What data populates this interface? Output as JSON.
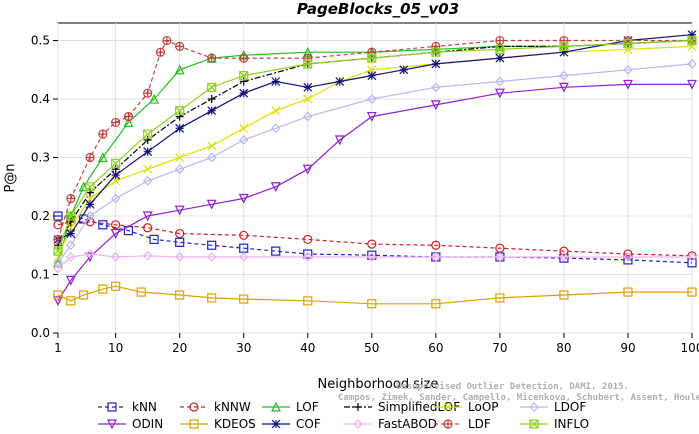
{
  "chart_data": {
    "type": "line",
    "title": "PageBlocks_05_v03",
    "xlabel": "Neighborhood size",
    "ylabel": "P@n",
    "xlim": [
      1,
      100
    ],
    "ylim": [
      0.0,
      0.53
    ],
    "x_ticks": [
      1,
      10,
      20,
      30,
      40,
      50,
      60,
      70,
      80,
      90,
      100
    ],
    "y_ticks": [
      0.0,
      0.1,
      0.2,
      0.3,
      0.4,
      0.5
    ],
    "grid": true,
    "legend_position": "bottom",
    "watermark": [
      "Unsupervised Outlier Detection, DAMI, 2015.",
      "Campos, Zimek, Sander, Campello, Micenkova, Schubert, Assent, Houle"
    ],
    "series": [
      {
        "name": "kNN",
        "color": "#2020d0",
        "marker": "square",
        "dash": "4,3",
        "points": [
          [
            1,
            0.2
          ],
          [
            3,
            0.2
          ],
          [
            5,
            0.195
          ],
          [
            8,
            0.185
          ],
          [
            12,
            0.175
          ],
          [
            16,
            0.16
          ],
          [
            20,
            0.155
          ],
          [
            25,
            0.15
          ],
          [
            30,
            0.145
          ],
          [
            35,
            0.14
          ],
          [
            40,
            0.135
          ],
          [
            50,
            0.133
          ],
          [
            60,
            0.13
          ],
          [
            70,
            0.13
          ],
          [
            80,
            0.128
          ],
          [
            90,
            0.125
          ],
          [
            100,
            0.12
          ]
        ]
      },
      {
        "name": "kNNW",
        "color": "#d02020",
        "marker": "circle",
        "dash": "4,3",
        "points": [
          [
            1,
            0.185
          ],
          [
            3,
            0.19
          ],
          [
            6,
            0.19
          ],
          [
            10,
            0.185
          ],
          [
            15,
            0.18
          ],
          [
            20,
            0.17
          ],
          [
            30,
            0.167
          ],
          [
            40,
            0.16
          ],
          [
            50,
            0.152
          ],
          [
            60,
            0.15
          ],
          [
            70,
            0.145
          ],
          [
            80,
            0.14
          ],
          [
            90,
            0.135
          ],
          [
            100,
            0.132
          ]
        ]
      },
      {
        "name": "LOF",
        "color": "#20c020",
        "marker": "triangle",
        "dash": "",
        "points": [
          [
            1,
            0.12
          ],
          [
            3,
            0.2
          ],
          [
            5,
            0.25
          ],
          [
            8,
            0.3
          ],
          [
            12,
            0.36
          ],
          [
            16,
            0.4
          ],
          [
            20,
            0.45
          ],
          [
            25,
            0.47
          ],
          [
            30,
            0.475
          ],
          [
            40,
            0.48
          ],
          [
            50,
            0.48
          ],
          [
            60,
            0.485
          ],
          [
            70,
            0.49
          ],
          [
            80,
            0.49
          ],
          [
            90,
            0.495
          ],
          [
            100,
            0.5
          ]
        ]
      },
      {
        "name": "SimplifiedLOF",
        "color": "#000000",
        "marker": "plus",
        "dash": "6,2,2,2",
        "points": [
          [
            1,
            0.15
          ],
          [
            3,
            0.19
          ],
          [
            6,
            0.24
          ],
          [
            10,
            0.28
          ],
          [
            15,
            0.33
          ],
          [
            20,
            0.37
          ],
          [
            25,
            0.4
          ],
          [
            30,
            0.43
          ],
          [
            40,
            0.46
          ],
          [
            50,
            0.47
          ],
          [
            60,
            0.48
          ],
          [
            70,
            0.49
          ],
          [
            80,
            0.49
          ],
          [
            90,
            0.495
          ],
          [
            100,
            0.5
          ]
        ]
      },
      {
        "name": "LoOP",
        "color": "#e0e000",
        "marker": "x",
        "dash": "",
        "points": [
          [
            1,
            0.13
          ],
          [
            3,
            0.18
          ],
          [
            6,
            0.23
          ],
          [
            10,
            0.26
          ],
          [
            15,
            0.28
          ],
          [
            20,
            0.3
          ],
          [
            25,
            0.32
          ],
          [
            30,
            0.35
          ],
          [
            35,
            0.38
          ],
          [
            40,
            0.4
          ],
          [
            45,
            0.43
          ],
          [
            50,
            0.45
          ],
          [
            60,
            0.46
          ],
          [
            70,
            0.47
          ],
          [
            80,
            0.48
          ],
          [
            90,
            0.485
          ],
          [
            100,
            0.49
          ]
        ]
      },
      {
        "name": "LDOF",
        "color": "#b8b8f0",
        "marker": "diamond",
        "dash": "",
        "points": [
          [
            1,
            0.12
          ],
          [
            3,
            0.15
          ],
          [
            6,
            0.2
          ],
          [
            10,
            0.23
          ],
          [
            15,
            0.26
          ],
          [
            20,
            0.28
          ],
          [
            25,
            0.3
          ],
          [
            30,
            0.33
          ],
          [
            35,
            0.35
          ],
          [
            40,
            0.37
          ],
          [
            50,
            0.4
          ],
          [
            60,
            0.42
          ],
          [
            70,
            0.43
          ],
          [
            80,
            0.44
          ],
          [
            90,
            0.45
          ],
          [
            100,
            0.46
          ]
        ]
      },
      {
        "name": "ODIN",
        "color": "#9020d0",
        "marker": "triangle-down",
        "dash": "",
        "points": [
          [
            1,
            0.055
          ],
          [
            3,
            0.09
          ],
          [
            6,
            0.13
          ],
          [
            10,
            0.17
          ],
          [
            15,
            0.2
          ],
          [
            20,
            0.21
          ],
          [
            25,
            0.22
          ],
          [
            30,
            0.23
          ],
          [
            35,
            0.25
          ],
          [
            40,
            0.28
          ],
          [
            45,
            0.33
          ],
          [
            50,
            0.37
          ],
          [
            60,
            0.39
          ],
          [
            70,
            0.41
          ],
          [
            80,
            0.42
          ],
          [
            90,
            0.425
          ],
          [
            100,
            0.425
          ]
        ]
      },
      {
        "name": "KDEOS",
        "color": "#e0a000",
        "marker": "square",
        "dash": "",
        "points": [
          [
            1,
            0.065
          ],
          [
            3,
            0.055
          ],
          [
            5,
            0.065
          ],
          [
            8,
            0.075
          ],
          [
            10,
            0.08
          ],
          [
            14,
            0.07
          ],
          [
            20,
            0.065
          ],
          [
            25,
            0.06
          ],
          [
            30,
            0.058
          ],
          [
            40,
            0.055
          ],
          [
            50,
            0.05
          ],
          [
            60,
            0.05
          ],
          [
            70,
            0.06
          ],
          [
            80,
            0.065
          ],
          [
            90,
            0.07
          ],
          [
            100,
            0.07
          ]
        ]
      },
      {
        "name": "COF",
        "color": "#101080",
        "marker": "star",
        "dash": "",
        "points": [
          [
            1,
            0.16
          ],
          [
            3,
            0.17
          ],
          [
            6,
            0.22
          ],
          [
            10,
            0.27
          ],
          [
            15,
            0.31
          ],
          [
            20,
            0.35
          ],
          [
            25,
            0.38
          ],
          [
            30,
            0.41
          ],
          [
            35,
            0.43
          ],
          [
            40,
            0.42
          ],
          [
            45,
            0.43
          ],
          [
            50,
            0.44
          ],
          [
            55,
            0.45
          ],
          [
            60,
            0.46
          ],
          [
            70,
            0.47
          ],
          [
            80,
            0.48
          ],
          [
            90,
            0.5
          ],
          [
            100,
            0.51
          ]
        ]
      },
      {
        "name": "FastABOD",
        "color": "#f0b0f0",
        "marker": "diamond",
        "dash": "",
        "points": [
          [
            1,
            0.11
          ],
          [
            3,
            0.13
          ],
          [
            6,
            0.135
          ],
          [
            10,
            0.13
          ],
          [
            15,
            0.132
          ],
          [
            20,
            0.13
          ],
          [
            25,
            0.13
          ],
          [
            30,
            0.13
          ],
          [
            40,
            0.13
          ],
          [
            50,
            0.13
          ],
          [
            60,
            0.13
          ],
          [
            70,
            0.13
          ],
          [
            80,
            0.13
          ],
          [
            90,
            0.13
          ],
          [
            100,
            0.13
          ]
        ]
      },
      {
        "name": "LDF",
        "color": "#c04040",
        "marker": "circle-plus",
        "dash": "4,3",
        "points": [
          [
            1,
            0.16
          ],
          [
            3,
            0.23
          ],
          [
            6,
            0.3
          ],
          [
            8,
            0.34
          ],
          [
            10,
            0.36
          ],
          [
            12,
            0.37
          ],
          [
            15,
            0.41
          ],
          [
            17,
            0.48
          ],
          [
            18,
            0.5
          ],
          [
            20,
            0.49
          ],
          [
            25,
            0.47
          ],
          [
            30,
            0.47
          ],
          [
            40,
            0.47
          ],
          [
            50,
            0.48
          ],
          [
            60,
            0.49
          ],
          [
            70,
            0.5
          ],
          [
            80,
            0.5
          ],
          [
            90,
            0.5
          ],
          [
            100,
            0.5
          ]
        ]
      },
      {
        "name": "INFLO",
        "color": "#90d020",
        "marker": "square-x",
        "dash": "",
        "points": [
          [
            1,
            0.14
          ],
          [
            3,
            0.2
          ],
          [
            6,
            0.25
          ],
          [
            10,
            0.29
          ],
          [
            15,
            0.34
          ],
          [
            20,
            0.38
          ],
          [
            25,
            0.42
          ],
          [
            30,
            0.44
          ],
          [
            40,
            0.46
          ],
          [
            50,
            0.47
          ],
          [
            60,
            0.48
          ],
          [
            70,
            0.485
          ],
          [
            80,
            0.49
          ],
          [
            90,
            0.495
          ],
          [
            100,
            0.5
          ]
        ]
      }
    ]
  }
}
